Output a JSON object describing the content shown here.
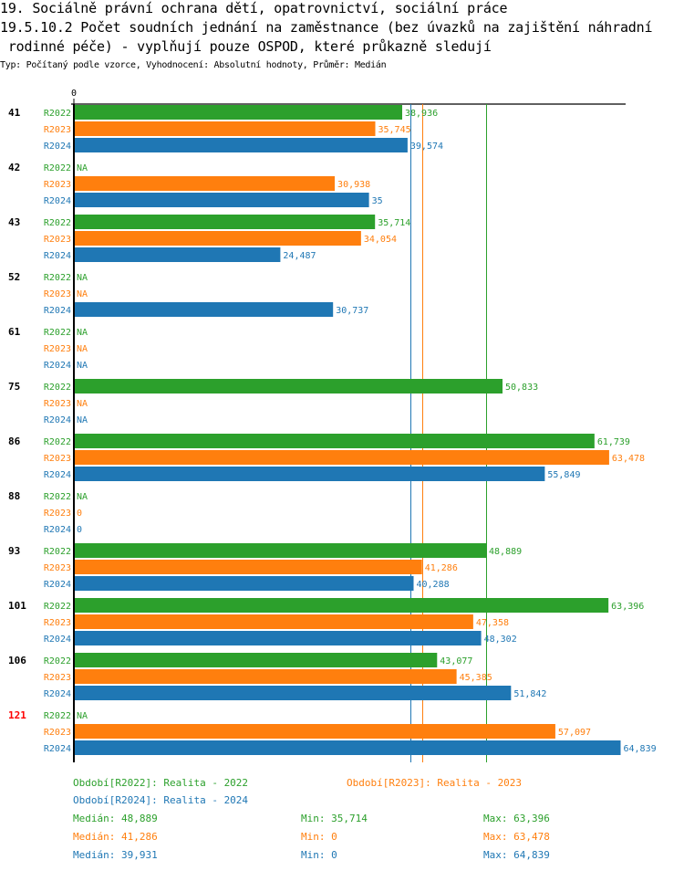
{
  "header": {
    "title_line1": "19. Sociálně právní ochrana dětí, opatrovnictví, sociální práce",
    "title_line2": "19.5.10.2 Počet soudních jednání na zaměstnance (bez úvazků na zajištění náhradní",
    "title_line3": " rodinné péče) - vyplňují pouze OSPOD, které průkazně sledují",
    "subtitle": "Typ: Počítaný podle vzorce, Vyhodnocení: Absolutní hodnoty, Průměr: Medián"
  },
  "colors": {
    "R2022": "#2ca02c",
    "R2023": "#ff7f0e",
    "R2024": "#1f77b4",
    "highlight_group": "#ff0000",
    "axis": "#000000"
  },
  "chart_data": {
    "type": "bar",
    "orientation": "horizontal",
    "title": "19.5.10.2 Počet soudních jednání na zaměstnance (bez úvazků na zajištění náhradní rodinné péče) - vyplňují pouze OSPOD, které průkazně sledují",
    "x_tick_labels": [
      "0"
    ],
    "xlim": [
      0,
      65500
    ],
    "categories": [
      "41",
      "42",
      "43",
      "52",
      "61",
      "75",
      "86",
      "88",
      "93",
      "101",
      "106",
      "121"
    ],
    "highlighted_category": "121",
    "series": [
      {
        "name": "R2022",
        "values": [
          38.936,
          null,
          35.714,
          null,
          null,
          50.833,
          61.739,
          null,
          48.889,
          63.396,
          43.077,
          null
        ],
        "labels": [
          "38,936",
          "NA",
          "35,714",
          "NA",
          "NA",
          "50,833",
          "61,739",
          "NA",
          "48,889",
          "63,396",
          "43,077",
          "NA"
        ]
      },
      {
        "name": "R2023",
        "values": [
          35.745,
          30.938,
          34.054,
          null,
          null,
          null,
          63.478,
          0,
          41.286,
          47.358,
          45.385,
          57.097
        ],
        "labels": [
          "35,745",
          "30,938",
          "34,054",
          "NA",
          "NA",
          "NA",
          "63,478",
          "0",
          "41,286",
          "47,358",
          "45,385",
          "57,097"
        ]
      },
      {
        "name": "R2024",
        "values": [
          39.574,
          35,
          24.487,
          30.737,
          null,
          null,
          55.849,
          0,
          40.288,
          48.302,
          51.842,
          64.839
        ],
        "labels": [
          "39,574",
          "35",
          "24,487",
          "30,737",
          "NA",
          "NA",
          "55,849",
          "0",
          "40,288",
          "48,302",
          "51,842",
          "64,839"
        ]
      }
    ],
    "reference_lines": [
      {
        "series": "R2022",
        "type": "median",
        "value": 48.889
      },
      {
        "series": "R2023",
        "type": "median",
        "value": 41.286
      },
      {
        "series": "R2024",
        "type": "median",
        "value": 39.931
      }
    ],
    "legend": [
      {
        "series": "R2022",
        "text": "Období[R2022]: Realita - 2022"
      },
      {
        "series": "R2023",
        "text": "Období[R2023]: Realita - 2023"
      },
      {
        "series": "R2024",
        "text": "Období[R2024]: Realita - 2024"
      }
    ],
    "legend_placement": "bottom",
    "stats": [
      {
        "series": "R2022",
        "median": "Medián: 48,889",
        "min": "Min: 35,714",
        "max": "Max: 63,396"
      },
      {
        "series": "R2023",
        "median": "Medián: 41,286",
        "min": "Min: 0",
        "max": "Max: 63,478"
      },
      {
        "series": "R2024",
        "median": "Medián: 39,931",
        "min": "Min: 0",
        "max": "Max: 64,839"
      }
    ]
  }
}
